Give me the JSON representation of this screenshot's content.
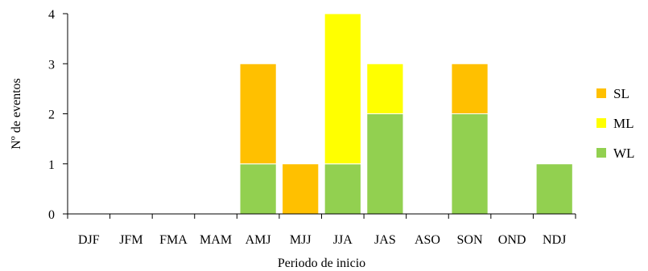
{
  "chart_data": {
    "type": "bar",
    "stacked": true,
    "categories": [
      "DJF",
      "JFM",
      "FMA",
      "MAM",
      "AMJ",
      "MJJ",
      "JJA",
      "JAS",
      "ASO",
      "SON",
      "OND",
      "NDJ"
    ],
    "series": [
      {
        "name": "WL",
        "color": "#92d050",
        "values": [
          0,
          0,
          0,
          0,
          1,
          0,
          1,
          2,
          0,
          2,
          0,
          1
        ]
      },
      {
        "name": "ML",
        "color": "#ffff00",
        "values": [
          0,
          0,
          0,
          0,
          0,
          0,
          3,
          1,
          0,
          0,
          0,
          0
        ]
      },
      {
        "name": "SL",
        "color": "#ffc000",
        "values": [
          0,
          0,
          0,
          0,
          2,
          1,
          0,
          0,
          0,
          1,
          0,
          0
        ]
      }
    ],
    "legend_order": [
      "SL",
      "ML",
      "WL"
    ],
    "xlabel": "Periodo de inicio",
    "ylabel": "Nº de eventos",
    "ylim": [
      0,
      4
    ],
    "yticks": [
      0,
      1,
      2,
      3,
      4
    ],
    "grid": false,
    "legend_position": "right"
  }
}
